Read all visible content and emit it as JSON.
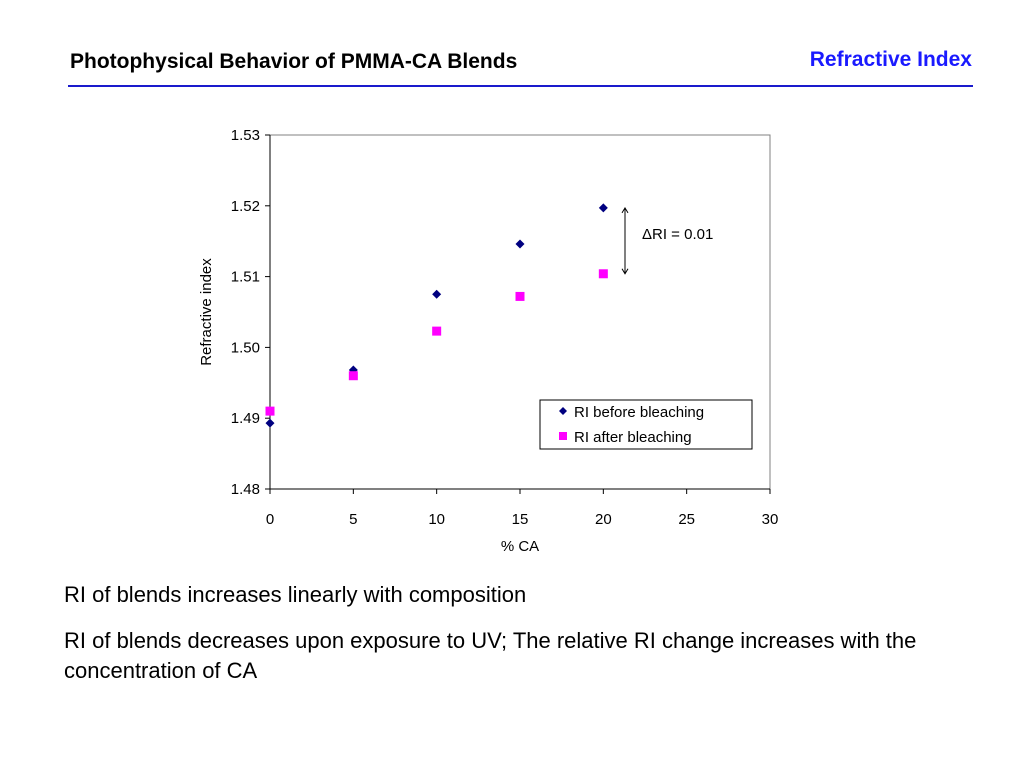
{
  "header": {
    "title": "Photophysical Behavior of PMMA-CA Blends",
    "section": "Refractive Index"
  },
  "chart_data": {
    "type": "scatter",
    "xlabel": "% CA",
    "ylabel": "Refractive index",
    "xlim": [
      0,
      30
    ],
    "ylim": [
      1.48,
      1.53
    ],
    "xticks": [
      0,
      5,
      10,
      15,
      20,
      25,
      30
    ],
    "xtick_labels": [
      "0",
      "5",
      "10",
      "15",
      "20",
      "25",
      "30"
    ],
    "yticks": [
      1.48,
      1.49,
      1.5,
      1.51,
      1.52,
      1.53
    ],
    "ytick_labels": [
      "1.48",
      "1.49",
      "1.50",
      "1.51",
      "1.52",
      "1.53"
    ],
    "grid": false,
    "legend_position": "lower-right",
    "series": [
      {
        "name": "RI before bleaching",
        "marker": "diamond",
        "color": "#000080",
        "x": [
          0,
          5,
          10,
          15,
          20
        ],
        "y": [
          1.4893,
          1.4968,
          1.5075,
          1.5146,
          1.5197
        ]
      },
      {
        "name": "RI after bleaching",
        "marker": "square",
        "color": "#ff00ff",
        "x": [
          0,
          5,
          10,
          15,
          20
        ],
        "y": [
          1.491,
          1.496,
          1.5023,
          1.5072,
          1.5104
        ]
      }
    ],
    "annotation": {
      "text": "ΔRI = 0.01",
      "x": 21.3,
      "y_range": [
        1.5104,
        1.5197
      ]
    }
  },
  "bullets": [
    "RI of blends increases linearly with composition",
    "RI of blends decreases upon exposure to UV; The relative RI change increases with the concentration of CA"
  ]
}
